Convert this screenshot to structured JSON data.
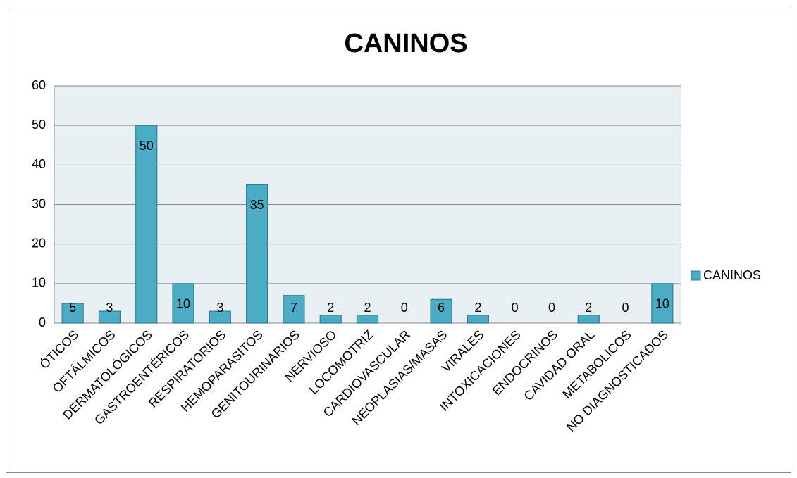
{
  "chart_data": {
    "type": "bar",
    "title": "CANINOS",
    "categories": [
      "ÓTICOS",
      "OFTÁLMICOS",
      "DERMATOLÓGICOS",
      "GASTROENTÉRICOS",
      "RESPIRATORIOS",
      "HEMOPARASITOS",
      "GENITOURINARIOS",
      "NERVIOSO",
      "LOCOMOTRIZ",
      "CARDIOVASCULAR",
      "NEOPLASIAS/MASAS",
      "VIRALES",
      "INTOXICACIONES",
      "ENDOCRINOS",
      "CAVIDAD ORAL",
      "METABOLICOS",
      "NO DIAGNOSTICADOS"
    ],
    "series": [
      {
        "name": "CANINOS",
        "color": "#4bacc6",
        "values": [
          5,
          3,
          50,
          10,
          3,
          35,
          7,
          2,
          2,
          0,
          6,
          2,
          0,
          0,
          2,
          0,
          10
        ]
      }
    ],
    "ylim": [
      0,
      60
    ],
    "yticks": [
      0,
      10,
      20,
      30,
      40,
      50,
      60
    ],
    "grid": true,
    "legend": "right"
  }
}
